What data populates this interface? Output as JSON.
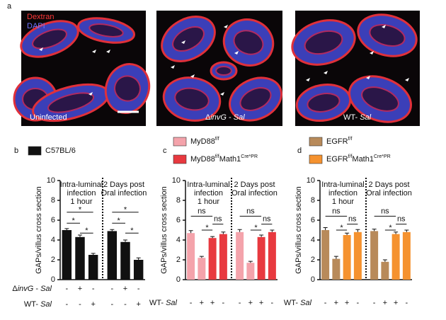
{
  "panel_a": {
    "label": "a",
    "stain_labels": [
      "Dextran",
      "DAPI"
    ],
    "images": [
      {
        "caption_parts": [
          {
            "text": "Uninfected"
          }
        ]
      },
      {
        "caption_parts": [
          {
            "text": "Δ"
          },
          {
            "text": "invG",
            "italic": true
          },
          {
            "text": " - "
          },
          {
            "text": "Sal",
            "italic": true
          }
        ]
      },
      {
        "caption_parts": [
          {
            "text": "WT- "
          },
          {
            "text": "Sal",
            "italic": true
          }
        ]
      }
    ]
  },
  "chart_data": [
    {
      "type": "bar",
      "label": "b",
      "ylabel": "GAPs/villus cross section",
      "ylim": [
        0,
        10
      ],
      "yticks": [
        0,
        2,
        4,
        6,
        8,
        10
      ],
      "annotations": [
        [
          "Intra-luminal",
          "infection",
          "1 hour"
        ],
        [
          "2 Days post",
          "Oral infection"
        ]
      ],
      "series": [
        {
          "name_parts": [
            {
              "text": "C57BL/6"
            }
          ],
          "color": "#111111",
          "values": [
            5.0,
            4.3,
            2.5,
            4.9,
            3.8,
            2.0
          ],
          "errors": [
            0.15,
            0.2,
            0.15,
            0.15,
            0.2,
            0.2
          ]
        }
      ],
      "rows": [
        {
          "label_parts": [
            {
              "text": "Δ"
            },
            {
              "text": "invG",
              "italic": true
            },
            {
              "text": " - "
            },
            {
              "text": "Sal",
              "italic": true
            }
          ],
          "values": [
            "-",
            "+",
            "-",
            "-",
            "+",
            "-"
          ]
        },
        {
          "label_parts": [
            {
              "text": "WT- "
            },
            {
              "text": "Sal",
              "italic": true
            }
          ],
          "values": [
            "-",
            "-",
            "+",
            "-",
            "-",
            "+"
          ]
        }
      ],
      "brackets": [
        {
          "from": 0,
          "to": 2,
          "y": 6.8,
          "label": "*"
        },
        {
          "from": 0,
          "to": 1,
          "y": 5.7,
          "label": "*"
        },
        {
          "from": 1,
          "to": 2,
          "y": 4.7,
          "label": "*"
        },
        {
          "from": 3,
          "to": 5,
          "y": 6.8,
          "label": "*"
        },
        {
          "from": 3,
          "to": 4,
          "y": 5.7,
          "label": "*"
        },
        {
          "from": 4,
          "to": 5,
          "y": 4.7,
          "label": "*"
        }
      ]
    },
    {
      "type": "bar",
      "label": "c",
      "ylabel": "GAPs/villus cross section",
      "ylim": [
        0,
        10
      ],
      "yticks": [
        0,
        2,
        4,
        6,
        8,
        10
      ],
      "annotations": [
        [
          "Intra-luminal",
          "infection",
          "1 hour"
        ],
        [
          "2 Days post",
          "Oral infection"
        ]
      ],
      "series": [
        {
          "name_parts": [
            {
              "text": "MyD88"
            },
            {
              "text": "f/f",
              "sup": true
            }
          ],
          "color": "#f4a3ab",
          "values": [
            4.7,
            2.2,
            null,
            null,
            4.8,
            1.7,
            null,
            null
          ],
          "errors": [
            0.25,
            0.15,
            null,
            null,
            0.25,
            0.15,
            null,
            null
          ]
        },
        {
          "name_parts": [
            {
              "text": "MyD88"
            },
            {
              "text": "f/f",
              "sup": true
            },
            {
              "text": "Math1"
            },
            {
              "text": "Cre*PR",
              "sup": true
            }
          ],
          "color": "#e8393f",
          "values": [
            null,
            null,
            4.2,
            4.6,
            null,
            null,
            4.3,
            4.8
          ],
          "errors": [
            null,
            null,
            0.15,
            0.2,
            null,
            null,
            0.2,
            0.2
          ]
        }
      ],
      "rows": [
        {
          "label_parts": [
            {
              "text": "WT- "
            },
            {
              "text": "Sal",
              "italic": true
            }
          ],
          "values": [
            "-",
            "+",
            "+",
            "-",
            "-",
            "+",
            "+",
            "-"
          ]
        }
      ],
      "brackets": [
        {
          "from": 0,
          "to": 2,
          "y": 6.4,
          "label": "ns"
        },
        {
          "from": 1,
          "to": 2,
          "y": 5.0,
          "label": "*"
        },
        {
          "from": 2,
          "to": 3,
          "y": 5.6,
          "label": "ns"
        },
        {
          "from": 4,
          "to": 6,
          "y": 6.4,
          "label": "ns"
        },
        {
          "from": 5,
          "to": 6,
          "y": 5.0,
          "label": "*"
        },
        {
          "from": 6,
          "to": 7,
          "y": 5.6,
          "label": "ns"
        }
      ]
    },
    {
      "type": "bar",
      "label": "d",
      "ylabel": "GAPs/villus cross section",
      "ylim": [
        0,
        10
      ],
      "yticks": [
        0,
        2,
        4,
        6,
        8,
        10
      ],
      "annotations": [
        [
          "Intra-luminal",
          "infection",
          "1 hour"
        ],
        [
          "2 Days post",
          "Oral infection"
        ]
      ],
      "series": [
        {
          "name_parts": [
            {
              "text": "EGFR"
            },
            {
              "text": "f/f",
              "sup": true
            }
          ],
          "color": "#b88a5a",
          "values": [
            5.0,
            2.1,
            null,
            null,
            4.9,
            1.8,
            null,
            null
          ],
          "errors": [
            0.25,
            0.25,
            null,
            null,
            0.2,
            0.2,
            null,
            null
          ]
        },
        {
          "name_parts": [
            {
              "text": "EGFR"
            },
            {
              "text": "f/f",
              "sup": true
            },
            {
              "text": "Math1"
            },
            {
              "text": "Cre*PR",
              "sup": true
            }
          ],
          "color": "#f5922f",
          "values": [
            null,
            null,
            4.5,
            4.8,
            null,
            null,
            4.6,
            4.8
          ],
          "errors": [
            null,
            null,
            0.2,
            0.25,
            null,
            null,
            0.2,
            0.2
          ]
        }
      ],
      "rows": [
        {
          "label_parts": [
            {
              "text": "WT- "
            },
            {
              "text": "Sal",
              "italic": true
            }
          ],
          "values": [
            "-",
            "+",
            "+",
            "-",
            "-",
            "+",
            "+",
            "-"
          ]
        }
      ],
      "brackets": [
        {
          "from": 0,
          "to": 2,
          "y": 6.4,
          "label": "ns"
        },
        {
          "from": 1,
          "to": 2,
          "y": 5.0,
          "label": "*"
        },
        {
          "from": 2,
          "to": 3,
          "y": 5.6,
          "label": "ns"
        },
        {
          "from": 4,
          "to": 6,
          "y": 6.4,
          "label": "ns"
        },
        {
          "from": 5,
          "to": 6,
          "y": 5.0,
          "label": "*"
        },
        {
          "from": 6,
          "to": 7,
          "y": 5.6,
          "label": "ns"
        }
      ]
    }
  ]
}
